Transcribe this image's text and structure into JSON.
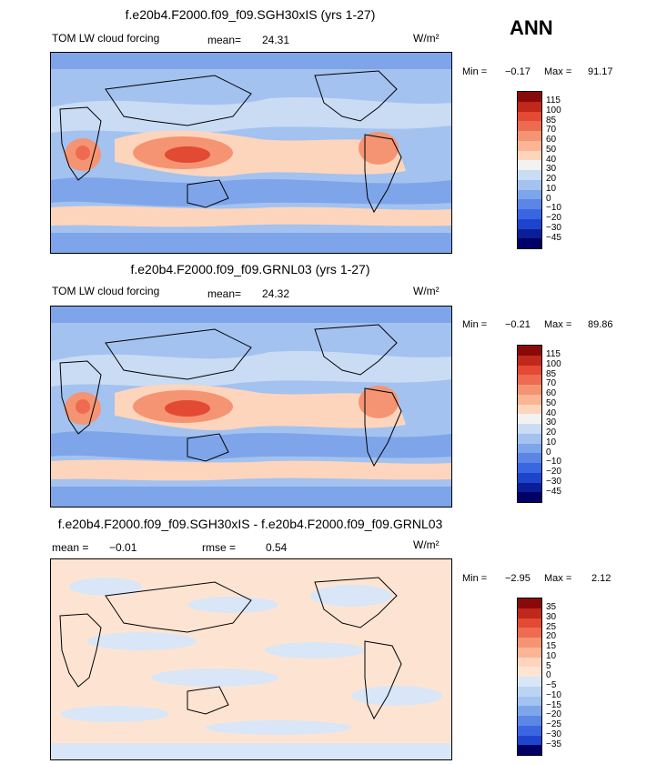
{
  "season": "ANN",
  "colors": {
    "field_levels": [
      "#8a0a0a",
      "#c0281c",
      "#e24a33",
      "#ee6a50",
      "#f59473",
      "#fbb595",
      "#fdd5bd",
      "#f2f2f2",
      "#c9dcf4",
      "#a3c2ef",
      "#7ea5ea",
      "#5c86e6",
      "#3b66e2",
      "#1f44cc",
      "#0a1e99",
      "#000066"
    ],
    "diff_levels": [
      "#8a0a0a",
      "#c0281c",
      "#e24a33",
      "#ee6a50",
      "#f59473",
      "#fbb595",
      "#fdd5bd",
      "#fde4d2",
      "#d9e6f7",
      "#bcd3f2",
      "#a3c2ef",
      "#7ea5ea",
      "#5c86e6",
      "#3b66e2",
      "#1f44cc",
      "#000066"
    ]
  },
  "panels": [
    {
      "title": "f.e20b4.F2000.f09_f09.SGH30xIS (yrs 1-27)",
      "variable": "TOM LW cloud forcing",
      "mean_label": "mean=",
      "mean_value": "24.31",
      "units": "W/m²",
      "min_label": "Min =",
      "min_value": "−0.17",
      "max_label": "Max =",
      "max_value": "91.17",
      "colorbar_labels": [
        "115",
        "100",
        "85",
        "70",
        "60",
        "50",
        "40",
        "30",
        "20",
        "10",
        "0",
        "−10",
        "−20",
        "−30",
        "−45"
      ]
    },
    {
      "title": "f.e20b4.F2000.f09_f09.GRNL03 (yrs 1-27)",
      "variable": "TOM LW cloud forcing",
      "mean_label": "mean=",
      "mean_value": "24.32",
      "units": "W/m²",
      "min_label": "Min =",
      "min_value": "−0.21",
      "max_label": "Max =",
      "max_value": "89.86",
      "colorbar_labels": [
        "115",
        "100",
        "85",
        "70",
        "60",
        "50",
        "40",
        "30",
        "20",
        "10",
        "0",
        "−10",
        "−20",
        "−30",
        "−45"
      ]
    },
    {
      "title": "f.e20b4.F2000.f09_f09.SGH30xIS - f.e20b4.F2000.f09_f09.GRNL03",
      "mean_label": "mean =",
      "mean_value": "−0.01",
      "rmse_label": "rmse =",
      "rmse_value": "0.54",
      "units": "W/m²",
      "min_label": "Min =",
      "min_value": "−2.95",
      "max_label": "Max =",
      "max_value": "2.12",
      "colorbar_labels": [
        "35",
        "30",
        "25",
        "20",
        "15",
        "10",
        "5",
        "0",
        "−5",
        "−10",
        "−15",
        "−20",
        "−25",
        "−30",
        "−35"
      ]
    }
  ],
  "chart_data": [
    {
      "type": "heatmap",
      "title": "f.e20b4.F2000.f09_f09.SGH30xIS (yrs 1-27)",
      "variable": "TOM LW cloud forcing",
      "units": "W/m²",
      "mean": 24.31,
      "min": -0.17,
      "max": 91.17,
      "levels": [
        115,
        100,
        85,
        70,
        60,
        50,
        40,
        30,
        20,
        10,
        0,
        -10,
        -20,
        -30,
        -45
      ]
    },
    {
      "type": "heatmap",
      "title": "f.e20b4.F2000.f09_f09.GRNL03 (yrs 1-27)",
      "variable": "TOM LW cloud forcing",
      "units": "W/m²",
      "mean": 24.32,
      "min": -0.21,
      "max": 89.86,
      "levels": [
        115,
        100,
        85,
        70,
        60,
        50,
        40,
        30,
        20,
        10,
        0,
        -10,
        -20,
        -30,
        -45
      ]
    },
    {
      "type": "heatmap",
      "title": "f.e20b4.F2000.f09_f09.SGH30xIS - f.e20b4.F2000.f09_f09.GRNL03",
      "units": "W/m²",
      "mean": -0.01,
      "rmse": 0.54,
      "min": -2.95,
      "max": 2.12,
      "levels": [
        35,
        30,
        25,
        20,
        15,
        10,
        5,
        0,
        -5,
        -10,
        -15,
        -20,
        -25,
        -30,
        -35
      ]
    }
  ]
}
